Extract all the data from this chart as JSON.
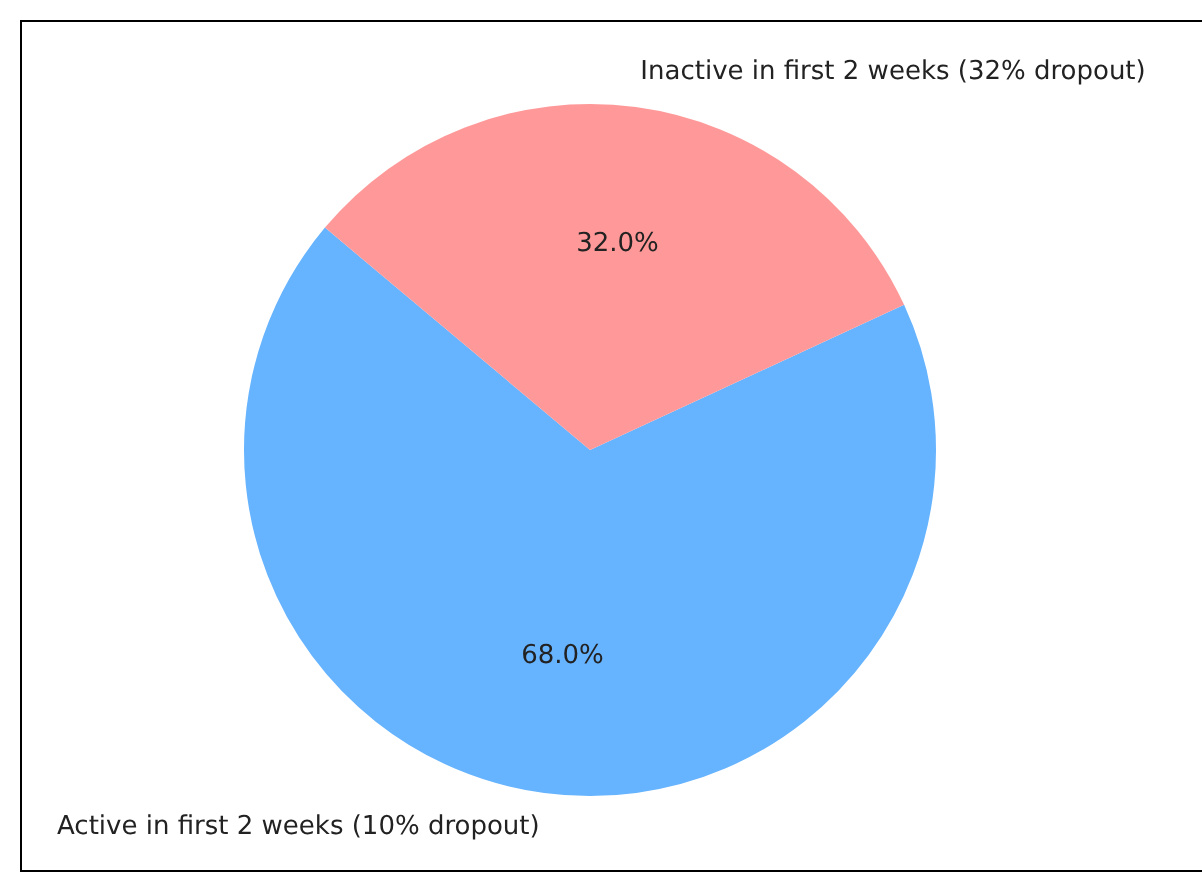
{
  "chart_data": {
    "type": "pie",
    "categories": [
      "Active in first 2 weeks (10% dropout)",
      "Inactive in first 2 weeks (32% dropout)"
    ],
    "values": [
      68,
      32
    ],
    "colors": [
      "#66b3ff",
      "#ff9999"
    ],
    "value_labels": [
      "68.0%",
      "32.0%"
    ],
    "legend": false
  }
}
